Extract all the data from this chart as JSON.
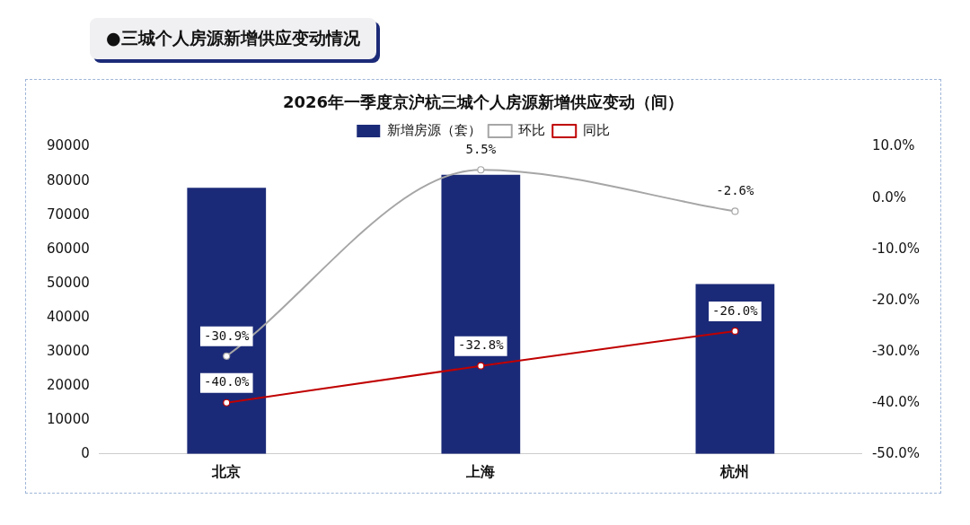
{
  "chart_data": {
    "type": "bar",
    "title": "2026年一季度京沪杭三城个人房源新增供应变动（间）",
    "subtitle": "●三城个人房源新增供应变动情况",
    "categories": [
      "北京",
      "上海",
      "杭州"
    ],
    "series": [
      {
        "name": "新增房源（套）",
        "color": "#1b2a78",
        "values": [
          78000,
          81800,
          49800
        ]
      },
      {
        "name": "环比",
        "type": "line",
        "axis": "y2",
        "color": "#a6a6a6",
        "values": [
          -30.9,
          5.5,
          -2.6
        ],
        "value_labels": [
          "-30.9%",
          "5.5%",
          "-2.6%"
        ]
      },
      {
        "name": "同比",
        "type": "line",
        "axis": "y2",
        "color": "#c00000",
        "values": [
          -40.0,
          -32.8,
          -26.0
        ],
        "value_labels": [
          "-40.0%",
          "-32.8%",
          "-26.0%"
        ]
      }
    ],
    "ylim": [
      0,
      90000
    ],
    "yticks": [
      0,
      10000,
      20000,
      30000,
      40000,
      50000,
      60000,
      70000,
      80000,
      90000
    ],
    "y2lim": [
      -50,
      10
    ],
    "y2ticks": [
      {
        "value": -50,
        "label": "-50.0%"
      },
      {
        "value": -40,
        "label": "-40.0%"
      },
      {
        "value": -30,
        "label": "-30.0%"
      },
      {
        "value": -20,
        "label": "-20.0%"
      },
      {
        "value": -10,
        "label": "-10.0%"
      },
      {
        "value": 0,
        "label": "0.0%"
      },
      {
        "value": 10,
        "label": "10.0%"
      }
    ],
    "grid": false,
    "legend": "top",
    "marker": "circle"
  }
}
